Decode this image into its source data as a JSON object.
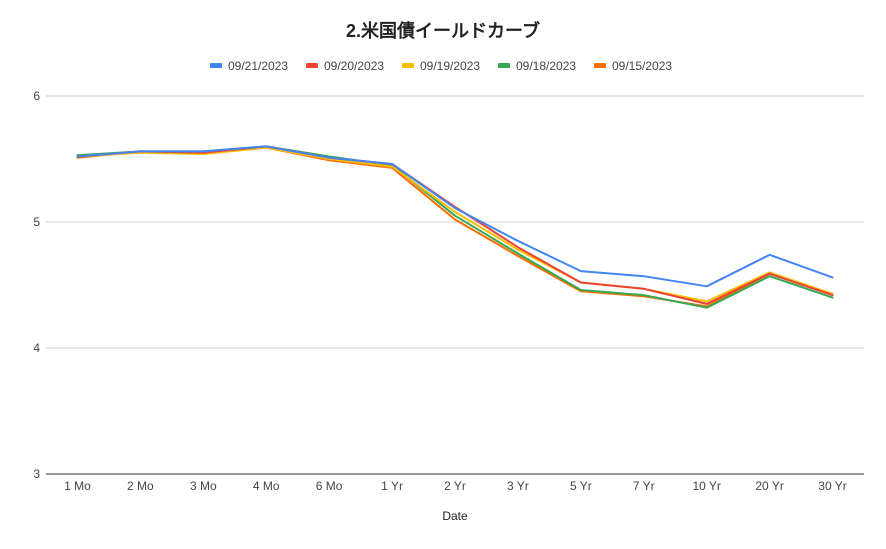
{
  "chart_data": {
    "type": "line",
    "title": "2.米国債イールドカーブ",
    "xlabel": "Date",
    "ylabel": "",
    "categories": [
      "1 Mo",
      "2 Mo",
      "3 Mo",
      "4 Mo",
      "6 Mo",
      "1 Yr",
      "2 Yr",
      "3 Yr",
      "5 Yr",
      "7 Yr",
      "10 Yr",
      "20 Yr",
      "30 Yr"
    ],
    "ylim": [
      3,
      6
    ],
    "yticks": [
      3,
      4,
      5,
      6
    ],
    "grid": true,
    "legend_position": "top",
    "series": [
      {
        "name": "09/21/2023",
        "color": "#4285F4",
        "values": [
          5.52,
          5.56,
          5.56,
          5.6,
          5.51,
          5.46,
          5.11,
          4.85,
          4.61,
          4.57,
          4.49,
          4.74,
          4.56
        ]
      },
      {
        "name": "09/20/2023",
        "color": "#EA4335",
        "values": [
          5.52,
          5.56,
          5.55,
          5.6,
          5.51,
          5.46,
          5.12,
          4.8,
          4.52,
          4.47,
          4.35,
          4.59,
          4.42
        ]
      },
      {
        "name": "09/19/2023",
        "color": "#FBBC04",
        "values": [
          5.52,
          5.55,
          5.54,
          5.59,
          5.5,
          5.44,
          5.08,
          4.78,
          4.52,
          4.47,
          4.37,
          4.6,
          4.43
        ]
      },
      {
        "name": "09/18/2023",
        "color": "#34A853",
        "values": [
          5.53,
          5.56,
          5.56,
          5.6,
          5.52,
          5.45,
          5.05,
          4.75,
          4.46,
          4.42,
          4.32,
          4.57,
          4.4
        ]
      },
      {
        "name": "09/15/2023",
        "color": "#FF6D01",
        "values": [
          5.51,
          5.56,
          5.55,
          5.59,
          5.49,
          5.43,
          5.02,
          4.73,
          4.45,
          4.41,
          4.33,
          4.59,
          4.42
        ]
      }
    ]
  }
}
